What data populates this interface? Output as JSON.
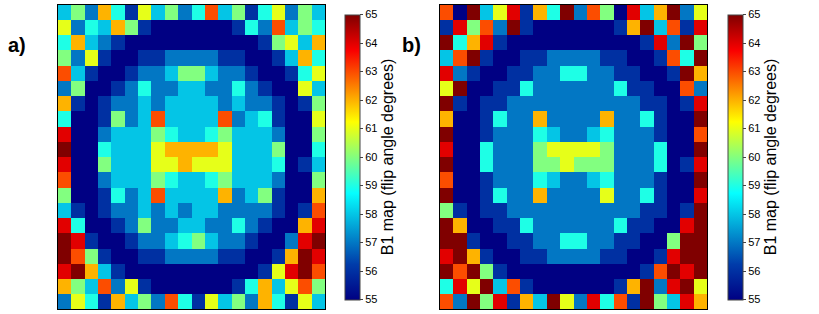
{
  "chart_data": [
    {
      "type": "heatmap",
      "panel_label": "a)",
      "colorbar_title": "B1 map (flip angle degrees)",
      "colorbar_range": [
        55,
        65
      ],
      "colorbar_ticks": [
        55,
        56,
        57,
        58,
        59,
        60,
        61,
        62,
        63,
        64,
        65
      ],
      "tick_labels": false,
      "cells": [
        [
          58,
          60,
          57,
          62,
          59,
          56,
          61,
          58,
          60,
          57,
          59,
          63,
          58,
          60,
          56,
          59,
          61,
          57,
          60,
          58
        ],
        [
          61,
          57,
          59,
          58,
          62,
          60,
          56,
          55,
          55,
          55,
          55,
          55,
          55,
          56,
          59,
          57,
          63,
          58,
          60,
          59
        ],
        [
          59,
          62,
          58,
          57,
          56,
          55,
          55,
          55,
          55,
          55,
          55,
          55,
          55,
          55,
          55,
          56,
          60,
          61,
          58,
          62
        ],
        [
          60,
          57,
          61,
          56,
          55,
          55,
          56,
          56,
          57,
          57,
          57,
          57,
          56,
          56,
          55,
          55,
          56,
          58,
          62,
          59
        ],
        [
          63,
          58,
          56,
          55,
          55,
          56,
          57,
          57,
          58,
          60,
          60,
          58,
          57,
          57,
          56,
          55,
          55,
          56,
          59,
          61
        ],
        [
          57,
          60,
          55,
          55,
          56,
          57,
          59,
          57,
          57,
          58,
          58,
          57,
          57,
          59,
          57,
          56,
          55,
          55,
          61,
          58
        ],
        [
          62,
          56,
          55,
          56,
          57,
          57,
          58,
          57,
          58,
          58,
          58,
          58,
          57,
          58,
          57,
          57,
          56,
          55,
          56,
          60
        ],
        [
          59,
          55,
          55,
          56,
          60,
          57,
          58,
          63,
          58,
          58,
          58,
          58,
          63,
          57,
          58,
          59,
          56,
          55,
          55,
          61
        ],
        [
          64,
          55,
          55,
          57,
          58,
          58,
          58,
          60,
          59,
          58,
          58,
          59,
          60,
          58,
          58,
          58,
          57,
          55,
          55,
          60
        ],
        [
          65,
          55,
          55,
          59,
          58,
          58,
          58,
          61,
          62,
          62,
          62,
          62,
          61,
          58,
          58,
          58,
          60,
          55,
          55,
          59
        ],
        [
          64,
          55,
          55,
          60,
          58,
          58,
          58,
          61,
          61,
          62,
          61,
          61,
          61,
          58,
          58,
          58,
          59,
          55,
          56,
          58
        ],
        [
          63,
          55,
          55,
          57,
          58,
          58,
          58,
          60,
          59,
          58,
          58,
          59,
          60,
          58,
          58,
          58,
          57,
          55,
          55,
          60
        ],
        [
          60,
          55,
          55,
          56,
          59,
          57,
          58,
          63,
          58,
          58,
          58,
          58,
          62,
          57,
          58,
          60,
          56,
          55,
          55,
          62
        ],
        [
          58,
          56,
          55,
          56,
          57,
          57,
          58,
          57,
          58,
          57,
          58,
          58,
          57,
          57,
          57,
          57,
          56,
          55,
          56,
          63
        ],
        [
          64,
          59,
          55,
          55,
          56,
          57,
          60,
          57,
          57,
          58,
          58,
          57,
          57,
          59,
          57,
          56,
          55,
          55,
          62,
          64
        ],
        [
          65,
          64,
          56,
          55,
          55,
          56,
          57,
          57,
          58,
          59,
          60,
          58,
          57,
          57,
          56,
          55,
          55,
          57,
          64,
          65
        ],
        [
          65,
          63,
          60,
          56,
          55,
          55,
          56,
          56,
          57,
          57,
          57,
          57,
          56,
          56,
          55,
          55,
          56,
          62,
          65,
          64
        ],
        [
          64,
          65,
          62,
          58,
          56,
          55,
          55,
          55,
          55,
          55,
          55,
          55,
          55,
          55,
          55,
          56,
          61,
          64,
          65,
          63
        ],
        [
          62,
          60,
          58,
          63,
          57,
          61,
          56,
          55,
          55,
          55,
          55,
          55,
          55,
          56,
          59,
          62,
          58,
          61,
          63,
          60
        ],
        [
          57,
          61,
          59,
          56,
          62,
          58,
          60,
          57,
          63,
          59,
          56,
          61,
          58,
          60,
          57,
          62,
          59,
          56,
          61,
          58
        ]
      ]
    },
    {
      "type": "heatmap",
      "panel_label": "b)",
      "colorbar_title": "B1 map (flip angle degrees)",
      "colorbar_range": [
        55,
        65
      ],
      "colorbar_ticks": [
        55,
        56,
        57,
        58,
        59,
        60,
        61,
        62,
        63,
        64,
        65
      ],
      "tick_labels": false,
      "cells": [
        [
          63,
          55,
          65,
          58,
          61,
          64,
          56,
          62,
          59,
          65,
          57,
          63,
          60,
          55,
          64,
          58,
          62,
          65,
          57,
          61
        ],
        [
          56,
          64,
          60,
          63,
          57,
          65,
          56,
          55,
          55,
          55,
          55,
          55,
          55,
          56,
          62,
          65,
          58,
          63,
          56,
          64
        ],
        [
          65,
          59,
          62,
          64,
          56,
          55,
          55,
          55,
          55,
          55,
          55,
          55,
          55,
          55,
          55,
          56,
          64,
          57,
          65,
          60
        ],
        [
          58,
          63,
          65,
          56,
          55,
          55,
          56,
          56,
          57,
          57,
          57,
          57,
          56,
          56,
          55,
          55,
          56,
          63,
          59,
          65
        ],
        [
          64,
          57,
          56,
          55,
          55,
          56,
          56,
          57,
          57,
          59,
          59,
          57,
          57,
          56,
          56,
          55,
          55,
          56,
          65,
          62
        ],
        [
          61,
          65,
          55,
          55,
          56,
          56,
          59,
          57,
          57,
          57,
          57,
          57,
          57,
          59,
          56,
          56,
          55,
          55,
          63,
          57
        ],
        [
          65,
          56,
          55,
          56,
          56,
          57,
          57,
          57,
          57,
          57,
          57,
          57,
          57,
          57,
          57,
          56,
          56,
          55,
          56,
          64
        ],
        [
          62,
          55,
          55,
          56,
          59,
          57,
          57,
          62,
          57,
          57,
          57,
          57,
          62,
          57,
          57,
          59,
          56,
          55,
          55,
          65
        ],
        [
          65,
          55,
          55,
          56,
          57,
          57,
          57,
          59,
          58,
          57,
          57,
          58,
          59,
          57,
          57,
          57,
          56,
          55,
          55,
          63
        ],
        [
          64,
          55,
          55,
          59,
          57,
          57,
          57,
          60,
          61,
          61,
          61,
          61,
          60,
          57,
          57,
          57,
          59,
          55,
          55,
          65
        ],
        [
          65,
          55,
          55,
          59,
          57,
          57,
          57,
          60,
          60,
          61,
          60,
          60,
          60,
          57,
          57,
          57,
          59,
          55,
          56,
          64
        ],
        [
          63,
          55,
          55,
          56,
          57,
          57,
          57,
          59,
          58,
          57,
          57,
          58,
          59,
          57,
          57,
          57,
          56,
          55,
          55,
          65
        ],
        [
          65,
          55,
          55,
          56,
          59,
          57,
          57,
          62,
          57,
          57,
          57,
          57,
          61,
          57,
          57,
          59,
          56,
          55,
          55,
          64
        ],
        [
          60,
          56,
          55,
          56,
          56,
          57,
          57,
          57,
          57,
          57,
          57,
          57,
          57,
          57,
          57,
          56,
          56,
          55,
          56,
          65
        ],
        [
          65,
          62,
          55,
          55,
          56,
          56,
          59,
          57,
          57,
          57,
          57,
          57,
          57,
          59,
          56,
          56,
          55,
          55,
          64,
          65
        ],
        [
          65,
          65,
          56,
          55,
          55,
          56,
          56,
          57,
          57,
          59,
          59,
          57,
          57,
          56,
          56,
          55,
          55,
          60,
          65,
          65
        ],
        [
          64,
          65,
          62,
          56,
          55,
          55,
          56,
          56,
          57,
          57,
          57,
          57,
          56,
          56,
          55,
          55,
          56,
          64,
          65,
          65
        ],
        [
          65,
          63,
          65,
          60,
          56,
          55,
          55,
          55,
          55,
          55,
          55,
          55,
          55,
          55,
          55,
          56,
          63,
          65,
          64,
          65
        ],
        [
          59,
          64,
          61,
          65,
          58,
          63,
          56,
          55,
          55,
          55,
          55,
          55,
          55,
          56,
          62,
          65,
          57,
          64,
          65,
          61
        ],
        [
          63,
          57,
          65,
          60,
          64,
          56,
          62,
          58,
          65,
          61,
          57,
          64,
          59,
          63,
          56,
          65,
          60,
          58,
          64,
          62
        ]
      ]
    }
  ]
}
